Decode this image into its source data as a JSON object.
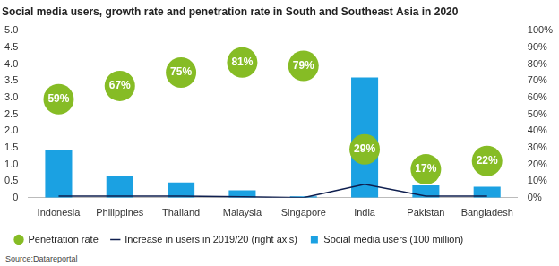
{
  "chart_data": {
    "type": "bar",
    "title": "Social media users, growth rate and penetration rate in South and Southeast Asia in 2020",
    "source": "Source:Datareportal",
    "categories": [
      "Indonesia",
      "Philippines",
      "Thailand",
      "Malaysia",
      "Singapore",
      "India",
      "Pakistan",
      "Bangladesh"
    ],
    "series": [
      {
        "name": "Social media users (100 million)",
        "type": "bar",
        "color": "#1ba1e2",
        "axis": "y",
        "values": [
          1.43,
          0.65,
          0.46,
          0.22,
          0.04,
          3.6,
          0.37,
          0.33
        ]
      },
      {
        "name": "Increase in users in 2019/20 (right axis)",
        "type": "line",
        "color": "#0f1f4f",
        "axis": "y2",
        "line_style": "solid",
        "values": [
          1,
          1,
          1,
          0.5,
          0,
          8,
          1,
          1
        ]
      },
      {
        "name": "Penetration rate",
        "type": "scatter",
        "color": "#86bc25",
        "axis": "y2",
        "marker": "circle",
        "data_labels": true,
        "values": [
          59,
          67,
          75,
          81,
          79,
          29,
          17,
          22
        ],
        "value_labels": [
          "59%",
          "67%",
          "75%",
          "81%",
          "79%",
          "29%",
          "17%",
          "22%"
        ]
      }
    ],
    "ylim": [
      0,
      5
    ],
    "yticks": [
      0,
      0.5,
      {
        "value": 1,
        "label": "1.0"
      },
      1.5,
      {
        "value": 2,
        "label": "2.0"
      },
      2.5,
      {
        "value": 3,
        "label": "3.0"
      },
      3.5,
      {
        "value": 4,
        "label": "4.0"
      },
      4.5,
      {
        "value": 5,
        "label": "5.0"
      }
    ],
    "y2lim": [
      0,
      100
    ],
    "y2ticks": [
      {
        "value": 0,
        "label": "0%"
      },
      {
        "value": 10,
        "label": "10%"
      },
      {
        "value": 20,
        "label": "20%"
      },
      {
        "value": 30,
        "label": "30%"
      },
      {
        "value": 40,
        "label": "40%"
      },
      {
        "value": 50,
        "label": "50%"
      },
      {
        "value": 60,
        "label": "60%"
      },
      {
        "value": 70,
        "label": "70%"
      },
      {
        "value": 80,
        "label": "80%"
      },
      {
        "value": 90,
        "label": "90%"
      },
      {
        "value": 100,
        "label": "100%"
      }
    ],
    "grid": false,
    "legend": "bottom"
  }
}
